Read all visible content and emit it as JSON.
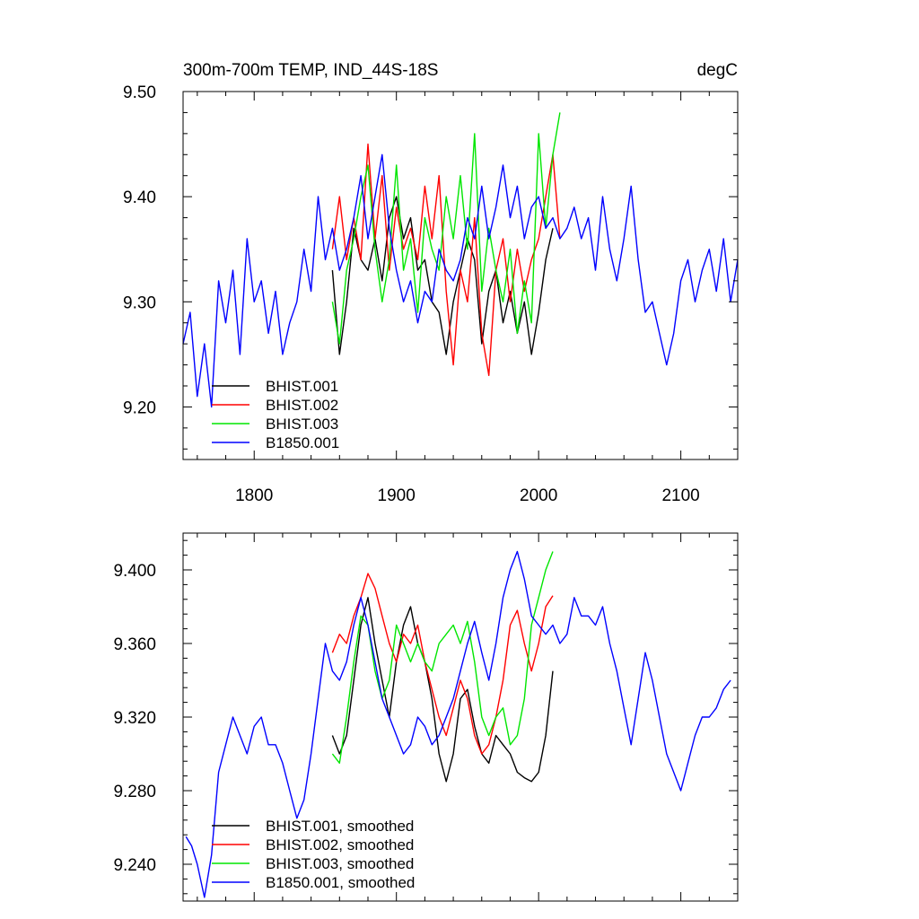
{
  "header": {
    "left": "300m-700m TEMP, IND_44S-18S",
    "right": "degC"
  },
  "chart_data": [
    {
      "type": "line",
      "title": "300m-700m TEMP, IND_44S-18S",
      "units": "degC",
      "xlim": [
        1750,
        2140
      ],
      "ylim": [
        9.15,
        9.5
      ],
      "x_ticks": [
        1800,
        1900,
        2000,
        2100
      ],
      "x_tick_labels": [
        "1800",
        "1900",
        "2000",
        "2100"
      ],
      "y_ticks": [
        9.2,
        9.3,
        9.4,
        9.5
      ],
      "y_tick_labels": [
        "9.20",
        "9.30",
        "9.40",
        "9.50"
      ],
      "legend_position": "bottom-left",
      "grid": false,
      "series": [
        {
          "name": "BHIST.001",
          "color": "#000000",
          "x": [
            1855,
            1860,
            1865,
            1870,
            1875,
            1880,
            1885,
            1890,
            1895,
            1900,
            1905,
            1910,
            1915,
            1920,
            1925,
            1930,
            1935,
            1940,
            1945,
            1950,
            1955,
            1960,
            1965,
            1970,
            1975,
            1980,
            1985,
            1990,
            1995,
            2000,
            2005,
            2010
          ],
          "values": [
            9.33,
            9.25,
            9.3,
            9.37,
            9.34,
            9.33,
            9.36,
            9.32,
            9.38,
            9.4,
            9.36,
            9.38,
            9.33,
            9.34,
            9.3,
            9.29,
            9.25,
            9.3,
            9.33,
            9.36,
            9.34,
            9.26,
            9.31,
            9.33,
            9.28,
            9.31,
            9.27,
            9.3,
            9.25,
            9.29,
            9.34,
            9.37
          ]
        },
        {
          "name": "BHIST.002",
          "color": "#ff0000",
          "x": [
            1855,
            1860,
            1865,
            1870,
            1875,
            1880,
            1885,
            1890,
            1895,
            1900,
            1905,
            1910,
            1915,
            1920,
            1925,
            1930,
            1935,
            1940,
            1945,
            1950,
            1955,
            1960,
            1965,
            1970,
            1975,
            1980,
            1985,
            1990,
            1995,
            2000,
            2005,
            2010,
            2015
          ],
          "values": [
            9.35,
            9.4,
            9.34,
            9.38,
            9.34,
            9.45,
            9.36,
            9.42,
            9.33,
            9.39,
            9.35,
            9.37,
            9.34,
            9.41,
            9.36,
            9.42,
            9.31,
            9.24,
            9.33,
            9.3,
            9.38,
            9.27,
            9.23,
            9.33,
            9.36,
            9.3,
            9.35,
            9.31,
            9.34,
            9.36,
            9.4,
            9.44,
            9.36
          ]
        },
        {
          "name": "BHIST.003",
          "color": "#00e600",
          "x": [
            1855,
            1860,
            1865,
            1870,
            1875,
            1880,
            1885,
            1890,
            1895,
            1900,
            1905,
            1910,
            1915,
            1920,
            1925,
            1930,
            1935,
            1940,
            1945,
            1950,
            1955,
            1960,
            1965,
            1970,
            1975,
            1980,
            1985,
            1990,
            1995,
            2000,
            2005,
            2010,
            2015
          ],
          "values": [
            9.3,
            9.26,
            9.33,
            9.36,
            9.4,
            9.43,
            9.35,
            9.3,
            9.34,
            9.43,
            9.33,
            9.36,
            9.29,
            9.38,
            9.35,
            9.33,
            9.4,
            9.36,
            9.42,
            9.35,
            9.46,
            9.31,
            9.37,
            9.33,
            9.3,
            9.35,
            9.27,
            9.32,
            9.28,
            9.46,
            9.37,
            9.44,
            9.48
          ]
        },
        {
          "name": "B1850.001",
          "color": "#0000ff",
          "x": [
            1750,
            1755,
            1760,
            1765,
            1770,
            1775,
            1780,
            1785,
            1790,
            1795,
            1800,
            1805,
            1810,
            1815,
            1820,
            1825,
            1830,
            1835,
            1840,
            1845,
            1850,
            1855,
            1860,
            1865,
            1870,
            1875,
            1880,
            1885,
            1890,
            1895,
            1900,
            1905,
            1910,
            1915,
            1920,
            1925,
            1930,
            1935,
            1940,
            1945,
            1950,
            1955,
            1960,
            1965,
            1970,
            1975,
            1980,
            1985,
            1990,
            1995,
            2000,
            2005,
            2010,
            2015,
            2020,
            2025,
            2030,
            2035,
            2040,
            2045,
            2050,
            2055,
            2060,
            2065,
            2070,
            2075,
            2080,
            2085,
            2090,
            2095,
            2100,
            2105,
            2110,
            2115,
            2120,
            2125,
            2130,
            2135,
            2140
          ],
          "values": [
            9.26,
            9.29,
            9.21,
            9.26,
            9.2,
            9.32,
            9.28,
            9.33,
            9.25,
            9.36,
            9.3,
            9.32,
            9.27,
            9.31,
            9.25,
            9.28,
            9.3,
            9.35,
            9.31,
            9.4,
            9.34,
            9.37,
            9.33,
            9.35,
            9.38,
            9.42,
            9.36,
            9.4,
            9.44,
            9.37,
            9.33,
            9.3,
            9.32,
            9.28,
            9.31,
            9.3,
            9.35,
            9.33,
            9.32,
            9.34,
            9.38,
            9.36,
            9.41,
            9.36,
            9.39,
            9.43,
            9.38,
            9.41,
            9.36,
            9.39,
            9.4,
            9.37,
            9.38,
            9.36,
            9.37,
            9.39,
            9.36,
            9.38,
            9.33,
            9.4,
            9.35,
            9.32,
            9.36,
            9.41,
            9.34,
            9.29,
            9.3,
            9.27,
            9.24,
            9.27,
            9.32,
            9.34,
            9.3,
            9.33,
            9.35,
            9.31,
            9.36,
            9.3,
            9.34
          ]
        }
      ]
    },
    {
      "type": "line",
      "xlim": [
        1750,
        2140
      ],
      "ylim": [
        9.22,
        9.42
      ],
      "x_ticks": [
        1800,
        1900,
        2000,
        2100
      ],
      "x_tick_labels": [],
      "y_ticks": [
        9.24,
        9.28,
        9.32,
        9.36,
        9.4
      ],
      "y_tick_labels": [
        "9.240",
        "9.280",
        "9.320",
        "9.360",
        "9.400"
      ],
      "legend_position": "bottom-left",
      "grid": false,
      "series": [
        {
          "name": "BHIST.001, smoothed",
          "color": "#000000",
          "x": [
            1855,
            1860,
            1865,
            1870,
            1875,
            1880,
            1885,
            1890,
            1895,
            1900,
            1905,
            1910,
            1915,
            1920,
            1925,
            1930,
            1935,
            1940,
            1945,
            1950,
            1955,
            1960,
            1965,
            1970,
            1975,
            1980,
            1985,
            1990,
            1995,
            2000,
            2005,
            2010
          ],
          "values": [
            9.31,
            9.3,
            9.31,
            9.34,
            9.37,
            9.385,
            9.36,
            9.34,
            9.32,
            9.35,
            9.37,
            9.38,
            9.36,
            9.35,
            9.33,
            9.3,
            9.285,
            9.3,
            9.33,
            9.335,
            9.315,
            9.3,
            9.295,
            9.31,
            9.305,
            9.3,
            9.29,
            9.287,
            9.285,
            9.29,
            9.31,
            9.345
          ]
        },
        {
          "name": "BHIST.002, smoothed",
          "color": "#ff0000",
          "x": [
            1855,
            1860,
            1865,
            1870,
            1875,
            1880,
            1885,
            1890,
            1895,
            1900,
            1905,
            1910,
            1915,
            1920,
            1925,
            1930,
            1935,
            1940,
            1945,
            1950,
            1955,
            1960,
            1965,
            1970,
            1975,
            1980,
            1985,
            1990,
            1995,
            2000,
            2005,
            2010
          ],
          "values": [
            9.355,
            9.365,
            9.36,
            9.375,
            9.385,
            9.398,
            9.39,
            9.375,
            9.36,
            9.35,
            9.365,
            9.36,
            9.37,
            9.35,
            9.335,
            9.32,
            9.31,
            9.325,
            9.34,
            9.33,
            9.31,
            9.3,
            9.305,
            9.32,
            9.34,
            9.37,
            9.378,
            9.36,
            9.345,
            9.36,
            9.38,
            9.386
          ]
        },
        {
          "name": "BHIST.003, smoothed",
          "color": "#00e600",
          "x": [
            1855,
            1860,
            1865,
            1870,
            1875,
            1880,
            1885,
            1890,
            1895,
            1900,
            1905,
            1910,
            1915,
            1920,
            1925,
            1930,
            1935,
            1940,
            1945,
            1950,
            1955,
            1960,
            1965,
            1970,
            1975,
            1980,
            1985,
            1990,
            1995,
            2000,
            2005,
            2010
          ],
          "values": [
            9.3,
            9.295,
            9.32,
            9.35,
            9.375,
            9.37,
            9.345,
            9.33,
            9.34,
            9.37,
            9.36,
            9.35,
            9.36,
            9.35,
            9.345,
            9.36,
            9.365,
            9.37,
            9.36,
            9.372,
            9.35,
            9.32,
            9.31,
            9.32,
            9.325,
            9.305,
            9.31,
            9.33,
            9.37,
            9.385,
            9.4,
            9.41
          ]
        },
        {
          "name": "B1850.001, smoothed",
          "color": "#0000ff",
          "x": [
            1752,
            1756,
            1760,
            1765,
            1770,
            1775,
            1780,
            1785,
            1790,
            1795,
            1800,
            1805,
            1810,
            1815,
            1820,
            1825,
            1830,
            1835,
            1840,
            1845,
            1850,
            1855,
            1860,
            1865,
            1870,
            1875,
            1880,
            1885,
            1890,
            1895,
            1900,
            1905,
            1910,
            1915,
            1920,
            1925,
            1930,
            1935,
            1940,
            1945,
            1950,
            1955,
            1960,
            1965,
            1970,
            1975,
            1980,
            1985,
            1990,
            1995,
            2000,
            2005,
            2010,
            2015,
            2020,
            2025,
            2030,
            2035,
            2040,
            2045,
            2050,
            2055,
            2060,
            2065,
            2070,
            2075,
            2080,
            2085,
            2090,
            2095,
            2100,
            2105,
            2110,
            2115,
            2120,
            2125,
            2130,
            2135
          ],
          "values": [
            9.255,
            9.25,
            9.24,
            9.222,
            9.245,
            9.29,
            9.305,
            9.32,
            9.31,
            9.3,
            9.315,
            9.32,
            9.305,
            9.305,
            9.295,
            9.28,
            9.265,
            9.275,
            9.3,
            9.33,
            9.36,
            9.345,
            9.34,
            9.35,
            9.37,
            9.385,
            9.37,
            9.35,
            9.33,
            9.32,
            9.31,
            9.3,
            9.305,
            9.32,
            9.315,
            9.305,
            9.31,
            9.32,
            9.33,
            9.345,
            9.36,
            9.372,
            9.355,
            9.34,
            9.36,
            9.385,
            9.4,
            9.41,
            9.395,
            9.375,
            9.37,
            9.365,
            9.37,
            9.36,
            9.365,
            9.385,
            9.375,
            9.375,
            9.37,
            9.38,
            9.36,
            9.345,
            9.325,
            9.305,
            9.33,
            9.355,
            9.34,
            9.32,
            9.3,
            9.29,
            9.28,
            9.295,
            9.31,
            9.32,
            9.32,
            9.325,
            9.335,
            9.34
          ]
        }
      ]
    }
  ]
}
